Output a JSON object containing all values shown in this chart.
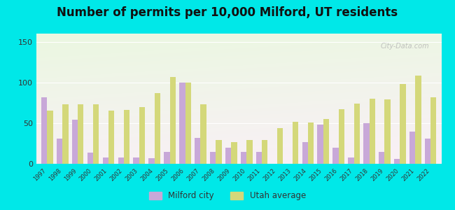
{
  "title": "Number of permits per 10,000 Milford, UT residents",
  "years": [
    1997,
    1998,
    1999,
    2000,
    2001,
    2002,
    2003,
    2004,
    2005,
    2006,
    2007,
    2008,
    2009,
    2010,
    2011,
    2012,
    2013,
    2014,
    2015,
    2016,
    2017,
    2018,
    2019,
    2020,
    2021,
    2022
  ],
  "milford": [
    82,
    31,
    54,
    14,
    8,
    8,
    8,
    7,
    15,
    100,
    32,
    15,
    20,
    15,
    15,
    0,
    0,
    27,
    48,
    20,
    8,
    50,
    15,
    6,
    40,
    31
  ],
  "utah": [
    65,
    73,
    73,
    73,
    65,
    66,
    70,
    87,
    107,
    100,
    73,
    29,
    27,
    29,
    29,
    44,
    52,
    51,
    55,
    67,
    74,
    80,
    79,
    98,
    108,
    82
  ],
  "milford_color": "#c8a8d8",
  "utah_color": "#d4d87a",
  "background_color": "#00e8e8",
  "ylim": [
    0,
    160
  ],
  "yticks": [
    0,
    50,
    100,
    150
  ],
  "title_fontsize": 12,
  "legend_milford": "Milford city",
  "legend_utah": "Utah average",
  "watermark": "City-Data.com"
}
